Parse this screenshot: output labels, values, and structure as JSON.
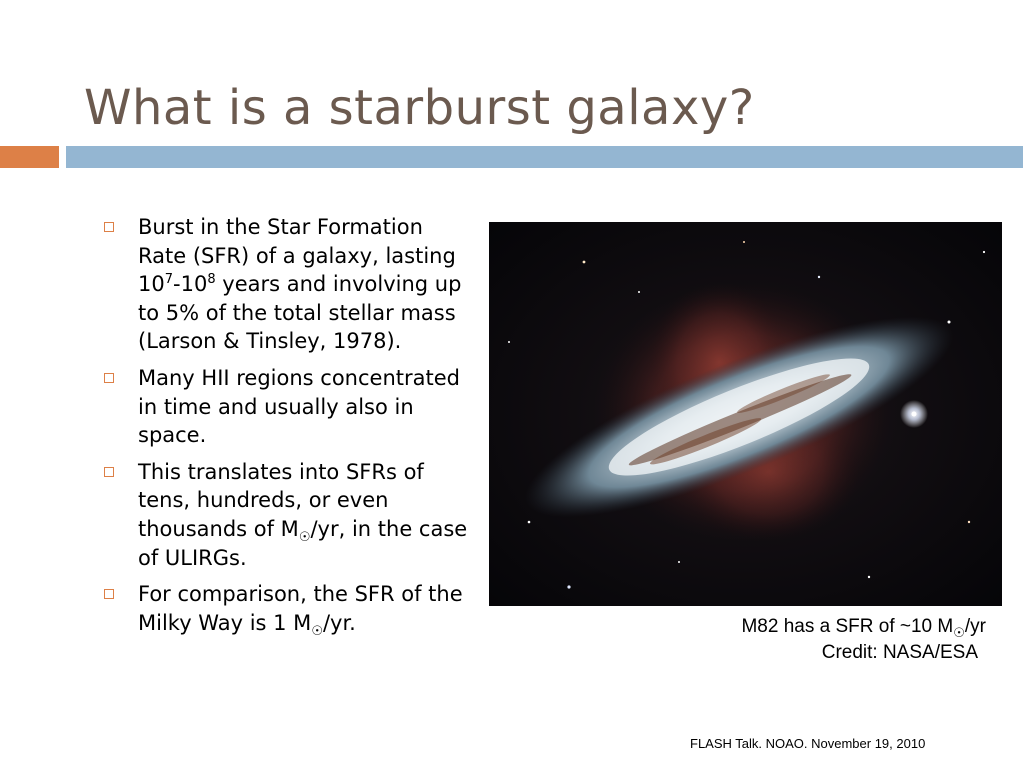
{
  "slide": {
    "title": "What is a starburst galaxy?",
    "bullets": [
      {
        "parts": [
          "Burst in the Star Formation Rate (SFR) of a galaxy, lasting 10",
          "7",
          "-10",
          "8",
          " years and involving up to 5% of the total stellar mass (Larson & Tinsley, 1978)."
        ]
      },
      {
        "text": "Many HII regions concentrated in time and usually also in space."
      },
      {
        "parts": [
          "This translates into SFRs of tens, hundreds, or even thousands of M",
          "☉",
          "/yr, in the case of ULIRGs."
        ]
      },
      {
        "parts": [
          "For comparison, the SFR of the Milky Way is 1 M",
          "☉",
          "/yr."
        ]
      }
    ],
    "caption": {
      "line1_parts": [
        "M82 has a SFR of ~10 M",
        "☉",
        "/yr"
      ],
      "line2": "Credit: NASA/ESA"
    },
    "footer": "FLASH Talk. NOAO. November 19, 2010"
  },
  "colors": {
    "title": "#6b5a4f",
    "accent_orange": "#dd8047",
    "accent_blue": "#94b6d2"
  },
  "image": {
    "subject": "galaxy-photo"
  }
}
